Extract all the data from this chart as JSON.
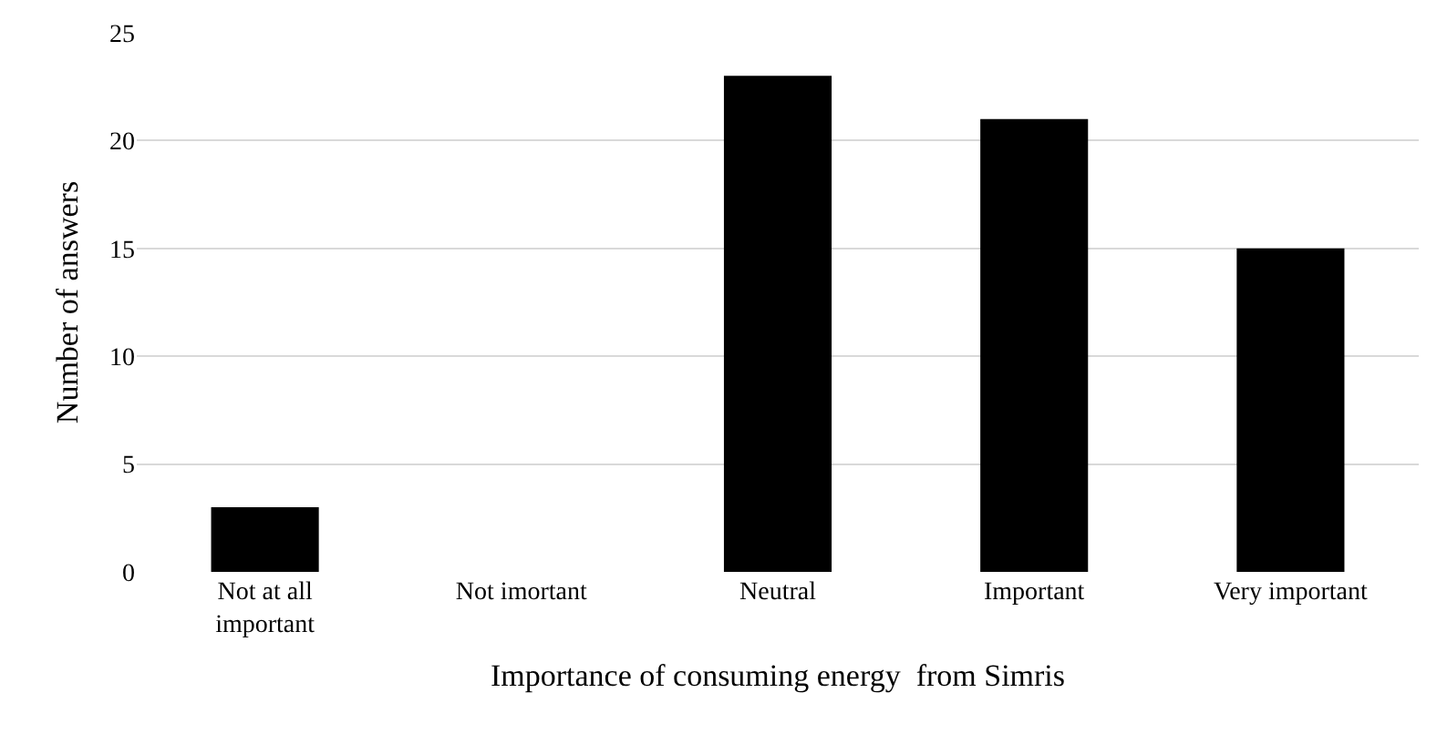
{
  "chart_data": {
    "type": "bar",
    "xlabel": "Importance of consuming energy  from Simris",
    "ylabel": "Number of answers",
    "categories": [
      "Not at all\nimportant",
      "Not imortant",
      "Neutral",
      "Important",
      "Very important"
    ],
    "values": [
      3,
      0,
      23,
      21,
      15
    ],
    "color": "#000000",
    "ylim": [
      0,
      25
    ],
    "yticks": [
      0,
      5,
      10,
      15,
      20,
      25
    ],
    "grid": "y",
    "legend": false
  }
}
